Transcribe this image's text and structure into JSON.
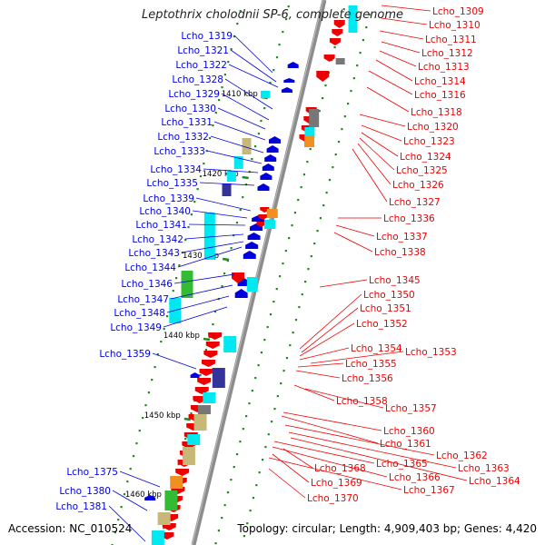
{
  "title": "Leptothrix cholodnii SP-6, complete genome",
  "footer": {
    "accession": "Accession: NC_010524",
    "topology": "Topology: circular; Length: 4,909,403 bp; Genes: 4,420"
  },
  "colors": {
    "left_strand": "#0000dd",
    "right_strand": "#ee0000",
    "cyan": "#00e8f0",
    "dark_blue": "#33339a",
    "tan": "#c8b878",
    "green": "#33bb33",
    "orange": "#f09020",
    "gray": "#777777",
    "tick": "#228822"
  },
  "kbp_labels": [
    "1410 kbp",
    "1420 kbp",
    "1430 kbp",
    "1440 kbp",
    "1450 kbp",
    "1460 kbp"
  ],
  "left_genes": [
    "Lcho_1319",
    "Lcho_1321",
    "Lcho_1322",
    "Lcho_1328",
    "Lcho_1329",
    "Lcho_1330",
    "Lcho_1331",
    "Lcho_1332",
    "Lcho_1333",
    "Lcho_1334",
    "Lcho_1335",
    "Lcho_1339",
    "Lcho_1340",
    "Lcho_1341",
    "Lcho_1342",
    "Lcho_1343",
    "Lcho_1344",
    "Lcho_1346",
    "Lcho_1347",
    "Lcho_1348",
    "Lcho_1349",
    "Lcho_1359",
    "Lcho_1375",
    "Lcho_1380",
    "Lcho_1381"
  ],
  "right_genes": [
    "Lcho_1309",
    "Lcho_1310",
    "Lcho_1311",
    "Lcho_1312",
    "Lcho_1313",
    "Lcho_1314",
    "Lcho_1316",
    "Lcho_1318",
    "Lcho_1320",
    "Lcho_1323",
    "Lcho_1324",
    "Lcho_1325",
    "Lcho_1326",
    "Lcho_1327",
    "Lcho_1336",
    "Lcho_1337",
    "Lcho_1338",
    "Lcho_1345",
    "Lcho_1350",
    "Lcho_1351",
    "Lcho_1352",
    "Lcho_1354",
    "Lcho_1353",
    "Lcho_1355",
    "Lcho_1356",
    "Lcho_1358",
    "Lcho_1357",
    "Lcho_1360",
    "Lcho_1361",
    "Lcho_1362",
    "Lcho_1365",
    "Lcho_1363",
    "Lcho_1368",
    "Lcho_1366",
    "Lcho_1364",
    "Lcho_1369",
    "Lcho_1367",
    "Lcho_1370"
  ]
}
